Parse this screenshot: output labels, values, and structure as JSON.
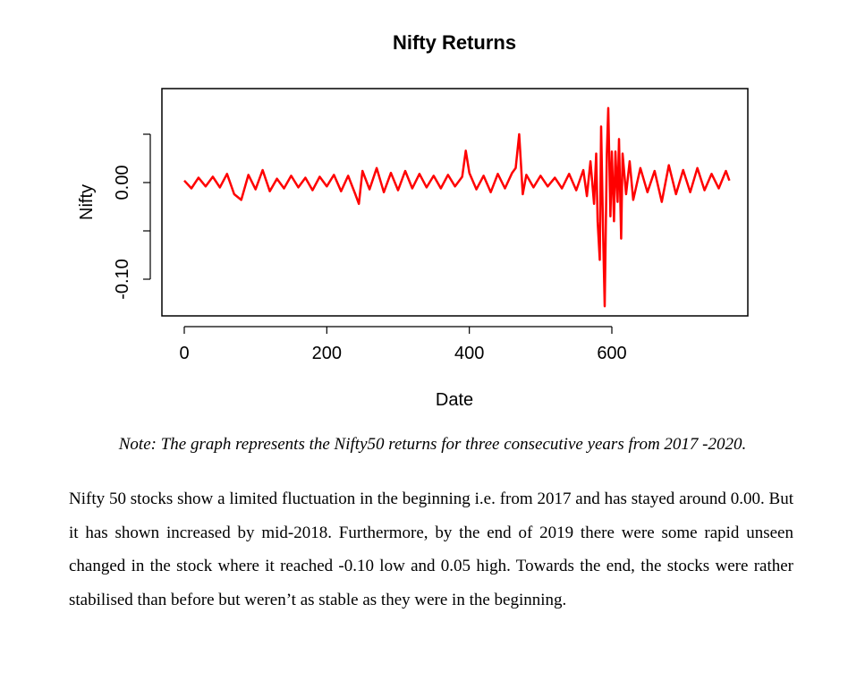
{
  "chart_data": {
    "type": "line",
    "title": "Nifty Returns",
    "xlabel": "Date",
    "ylabel": "Nifty",
    "xlim": [
      0,
      775
    ],
    "ylim": [
      -0.14,
      0.085
    ],
    "xticks": [
      0,
      200,
      400,
      600
    ],
    "xtick_labels": [
      "0",
      "200",
      "400",
      "600"
    ],
    "yticks": [
      -0.1,
      -0.05,
      0.0,
      0.05
    ],
    "ytick_labels": [
      "-0.10",
      "",
      "0.00",
      ""
    ],
    "grid": false,
    "line_color": "#ff0000",
    "series": [
      {
        "points": [
          [
            0,
            0.002
          ],
          [
            10,
            -0.006
          ],
          [
            20,
            0.005
          ],
          [
            30,
            -0.004
          ],
          [
            40,
            0.006
          ],
          [
            50,
            -0.005
          ],
          [
            60,
            0.009
          ],
          [
            70,
            -0.012
          ],
          [
            80,
            -0.018
          ],
          [
            90,
            0.008
          ],
          [
            100,
            -0.007
          ],
          [
            110,
            0.013
          ],
          [
            120,
            -0.009
          ],
          [
            130,
            0.004
          ],
          [
            140,
            -0.006
          ],
          [
            150,
            0.007
          ],
          [
            160,
            -0.005
          ],
          [
            170,
            0.005
          ],
          [
            180,
            -0.008
          ],
          [
            190,
            0.006
          ],
          [
            200,
            -0.004
          ],
          [
            210,
            0.008
          ],
          [
            220,
            -0.009
          ],
          [
            230,
            0.007
          ],
          [
            240,
            -0.012
          ],
          [
            245,
            -0.022
          ],
          [
            250,
            0.012
          ],
          [
            260,
            -0.007
          ],
          [
            270,
            0.015
          ],
          [
            280,
            -0.01
          ],
          [
            290,
            0.01
          ],
          [
            300,
            -0.008
          ],
          [
            310,
            0.012
          ],
          [
            320,
            -0.006
          ],
          [
            330,
            0.009
          ],
          [
            340,
            -0.005
          ],
          [
            350,
            0.007
          ],
          [
            360,
            -0.006
          ],
          [
            370,
            0.008
          ],
          [
            380,
            -0.004
          ],
          [
            390,
            0.006
          ],
          [
            395,
            0.033
          ],
          [
            400,
            0.01
          ],
          [
            410,
            -0.007
          ],
          [
            420,
            0.007
          ],
          [
            430,
            -0.01
          ],
          [
            440,
            0.009
          ],
          [
            450,
            -0.006
          ],
          [
            460,
            0.01
          ],
          [
            465,
            0.015
          ],
          [
            470,
            0.05
          ],
          [
            475,
            -0.012
          ],
          [
            480,
            0.008
          ],
          [
            490,
            -0.005
          ],
          [
            500,
            0.007
          ],
          [
            510,
            -0.004
          ],
          [
            520,
            0.005
          ],
          [
            530,
            -0.006
          ],
          [
            540,
            0.009
          ],
          [
            550,
            -0.008
          ],
          [
            560,
            0.013
          ],
          [
            565,
            -0.014
          ],
          [
            570,
            0.022
          ],
          [
            575,
            -0.022
          ],
          [
            578,
            0.03
          ],
          [
            580,
            -0.04
          ],
          [
            583,
            -0.08
          ],
          [
            585,
            0.058
          ],
          [
            588,
            -0.06
          ],
          [
            590,
            -0.128
          ],
          [
            593,
            0.03
          ],
          [
            595,
            0.077
          ],
          [
            598,
            -0.035
          ],
          [
            600,
            0.032
          ],
          [
            603,
            -0.04
          ],
          [
            605,
            0.032
          ],
          [
            608,
            -0.02
          ],
          [
            610,
            0.045
          ],
          [
            613,
            -0.058
          ],
          [
            615,
            0.03
          ],
          [
            620,
            -0.012
          ],
          [
            625,
            0.022
          ],
          [
            630,
            -0.018
          ],
          [
            640,
            0.015
          ],
          [
            650,
            -0.01
          ],
          [
            660,
            0.012
          ],
          [
            670,
            -0.02
          ],
          [
            680,
            0.018
          ],
          [
            690,
            -0.012
          ],
          [
            700,
            0.013
          ],
          [
            710,
            -0.01
          ],
          [
            720,
            0.015
          ],
          [
            730,
            -0.008
          ],
          [
            740,
            0.009
          ],
          [
            750,
            -0.006
          ],
          [
            760,
            0.012
          ],
          [
            765,
            0.002
          ]
        ]
      }
    ]
  },
  "note": "Note: The graph represents the Nifty50 returns for three consecutive years from 2017 -2020.",
  "paragraph": "Nifty 50 stocks show a limited fluctuation in the beginning i.e. from 2017 and has stayed around 0.00. But it has shown increased by mid-2018. Furthermore, by the end of 2019 there were some rapid unseen changed in the stock where it reached -0.10 low and 0.05 high. Towards the end, the stocks were rather stabilised than before but weren’t as stable as they were in the beginning."
}
